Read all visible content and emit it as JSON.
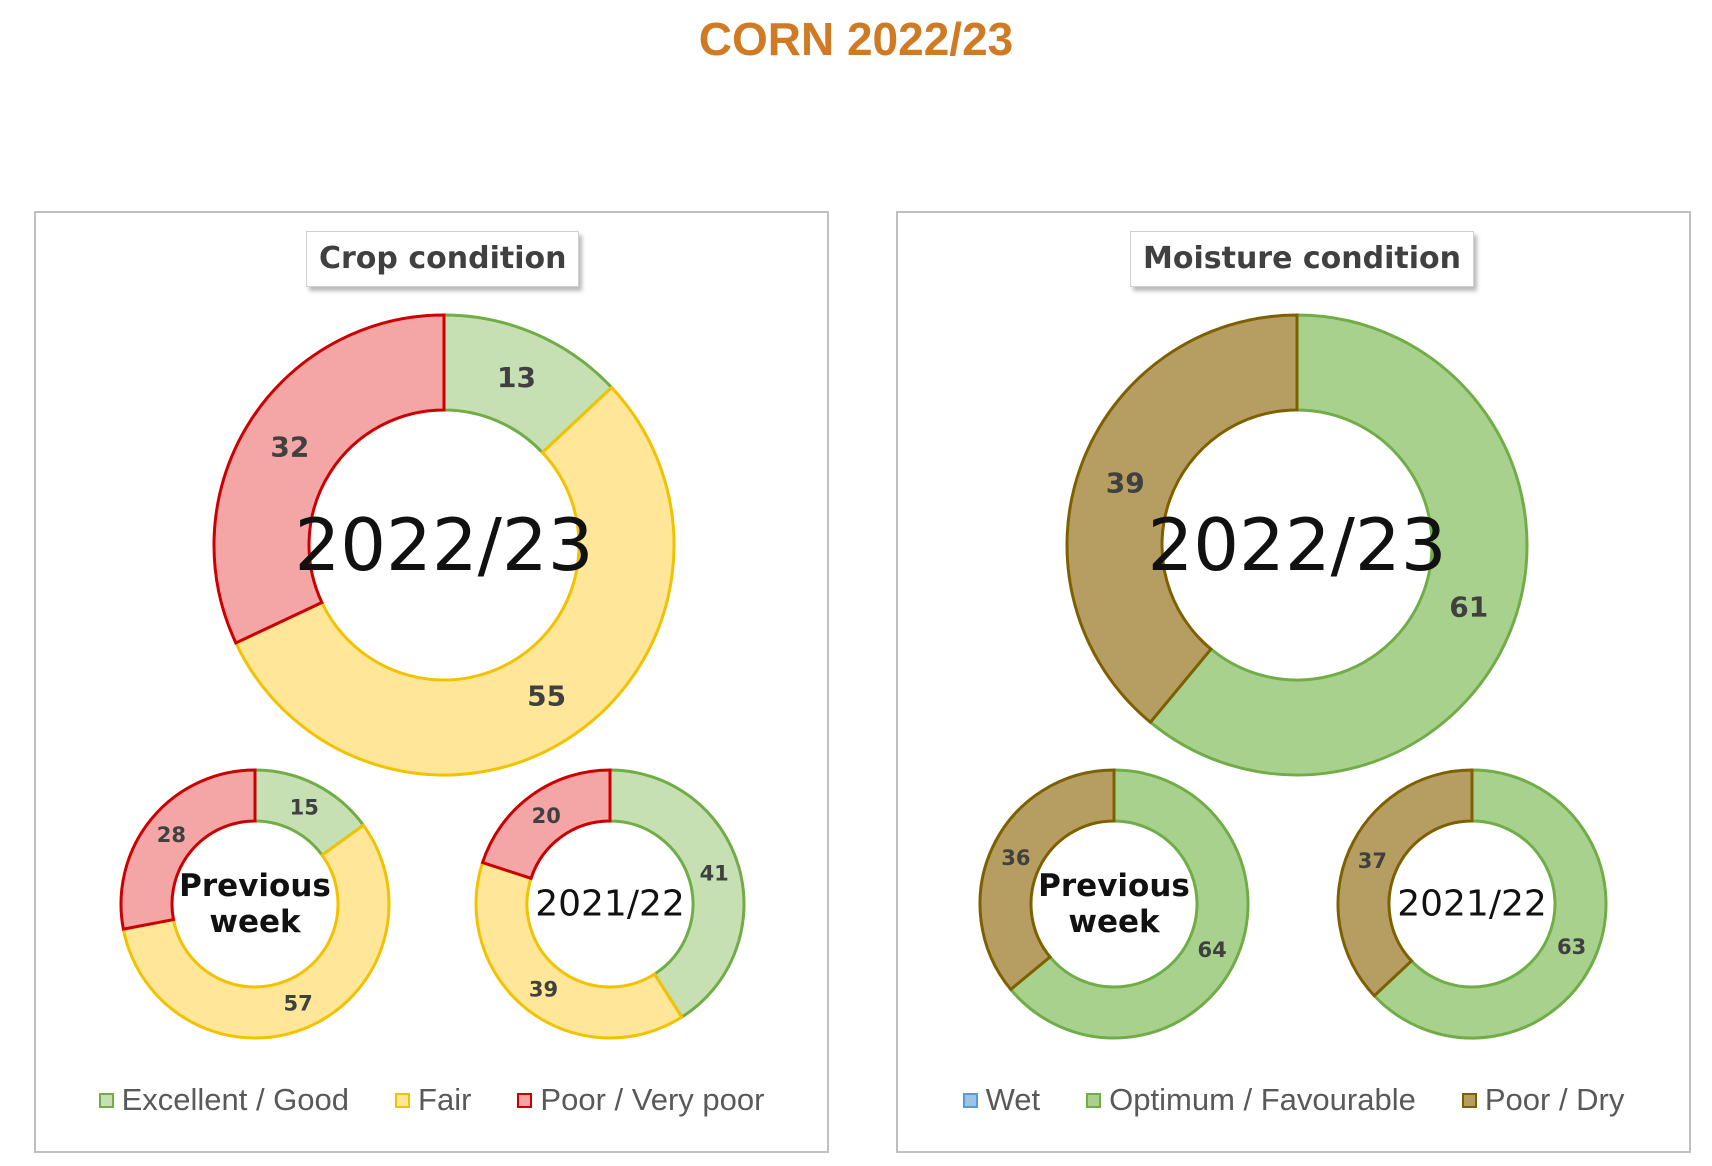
{
  "title": "CORN 2022/23",
  "chart_data": [
    {
      "type": "pie",
      "title": "Crop condition",
      "categories": [
        "Excellent / Good",
        "Fair",
        "Poor / Very poor"
      ],
      "colors": {
        "fill": [
          "#c6e0b4",
          "#ffe699",
          "#f4a6a6"
        ],
        "stroke": [
          "#70ad47",
          "#f2c200",
          "#cc0000"
        ]
      },
      "series": [
        {
          "name": "2022/23",
          "center_label": [
            "2022/23"
          ],
          "values": [
            13,
            55,
            32
          ],
          "labels": [
            "13",
            "55",
            "32"
          ]
        },
        {
          "name": "Previous week",
          "center_label": [
            "Previous",
            "week"
          ],
          "values": [
            15,
            57,
            28
          ],
          "labels": [
            "15",
            "57",
            "28"
          ]
        },
        {
          "name": "2021/22",
          "center_label": [
            "2021/22"
          ],
          "values": [
            41,
            39,
            20
          ],
          "labels": [
            "41",
            "39",
            "20"
          ]
        }
      ],
      "legend": [
        "Excellent / Good",
        "Fair",
        "Poor / Very poor"
      ]
    },
    {
      "type": "pie",
      "title": "Moisture condition",
      "categories": [
        "Wet",
        "Optimum / Favourable",
        "Poor / Dry"
      ],
      "colors": {
        "fill": [
          "#9dc3e6",
          "#a9d18e",
          "#b69e63"
        ],
        "stroke": [
          "#5b9bd5",
          "#70ad47",
          "#7f6000"
        ]
      },
      "series": [
        {
          "name": "2022/23",
          "center_label": [
            "2022/23"
          ],
          "values": [
            0,
            61,
            39
          ],
          "labels": [
            "-",
            "61",
            "39"
          ]
        },
        {
          "name": "Previous week",
          "center_label": [
            "Previous",
            "week"
          ],
          "values": [
            0,
            64,
            36
          ],
          "labels": [
            "-",
            "64",
            "36"
          ]
        },
        {
          "name": "2021/22",
          "center_label": [
            "2021/22"
          ],
          "values": [
            0,
            63,
            37
          ],
          "labels": [
            "-",
            "63",
            "37"
          ]
        }
      ],
      "legend": [
        "Wet",
        "Optimum / Favourable",
        "Poor / Dry"
      ]
    }
  ]
}
